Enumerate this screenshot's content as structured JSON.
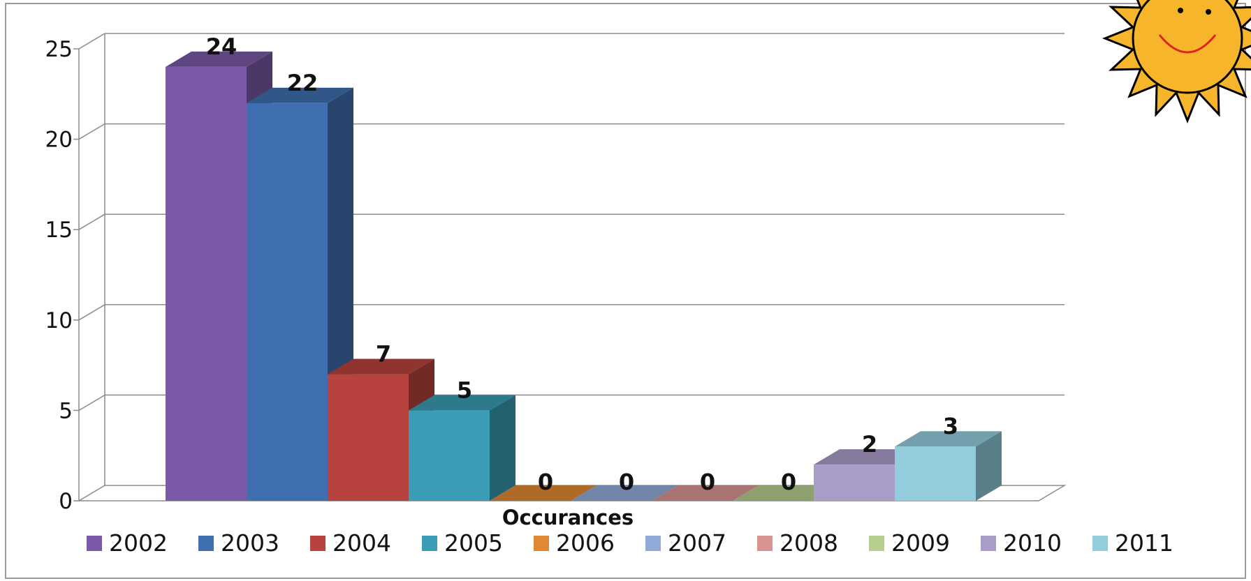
{
  "chart_data": {
    "type": "bar",
    "bar_style": "3d-column",
    "categories": [
      "Occurances"
    ],
    "xlabel": "Occurances",
    "ylabel": "",
    "ylim": [
      0,
      25
    ],
    "y_ticks": [
      "0",
      "5",
      "10",
      "15",
      "20",
      "25"
    ],
    "grid": true,
    "legend_position": "bottom",
    "data_labels": true,
    "series": [
      {
        "name": "2002",
        "values": [
          24
        ],
        "color": "#7a5aa6"
      },
      {
        "name": "2003",
        "values": [
          22
        ],
        "color": "#3f6fb0"
      },
      {
        "name": "2004",
        "values": [
          7
        ],
        "color": "#b8433e"
      },
      {
        "name": "2005",
        "values": [
          5
        ],
        "color": "#3a9db5"
      },
      {
        "name": "2006",
        "values": [
          0
        ],
        "color": "#e08833"
      },
      {
        "name": "2007",
        "values": [
          0
        ],
        "color": "#8faad6"
      },
      {
        "name": "2008",
        "values": [
          0
        ],
        "color": "#d89391"
      },
      {
        "name": "2009",
        "values": [
          0
        ],
        "color": "#b5cf8f"
      },
      {
        "name": "2010",
        "values": [
          2
        ],
        "color": "#aa9cc9"
      },
      {
        "name": "2011",
        "values": [
          3
        ],
        "color": "#93cddd"
      }
    ]
  },
  "decoration": {
    "sun_icon": "smiling-sun-icon",
    "sun_color": "#f7b52b"
  }
}
